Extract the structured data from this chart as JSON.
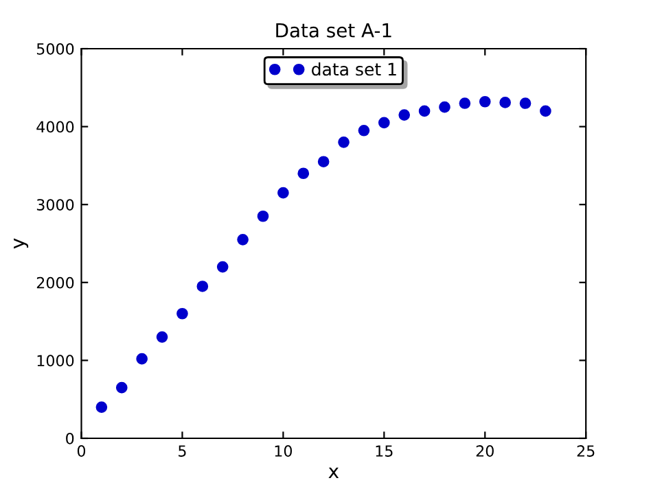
{
  "chart_data": {
    "type": "scatter",
    "title": "Data set A-1",
    "xlabel": "x",
    "ylabel": "y",
    "xlim": [
      0,
      25
    ],
    "xticks": [
      0,
      5,
      10,
      15,
      20,
      25
    ],
    "ylim": [
      0,
      5000
    ],
    "yticks": [
      0,
      1000,
      2000,
      3000,
      4000,
      5000
    ],
    "grid": false,
    "legend": "top",
    "marker": "circle",
    "series": [
      {
        "name": "data set 1",
        "color": "#0000cc",
        "x": [
          1,
          2,
          3,
          4,
          5,
          6,
          7,
          8,
          9,
          10,
          11,
          12,
          13,
          14,
          15,
          16,
          17,
          18,
          19,
          20,
          21,
          22,
          23
        ],
        "values": [
          400,
          650,
          1020,
          1300,
          1600,
          1950,
          2200,
          2550,
          2850,
          3150,
          3400,
          3550,
          3800,
          3950,
          4050,
          4150,
          4200,
          4250,
          4300,
          4320,
          4310,
          4300,
          4200
        ]
      }
    ]
  }
}
